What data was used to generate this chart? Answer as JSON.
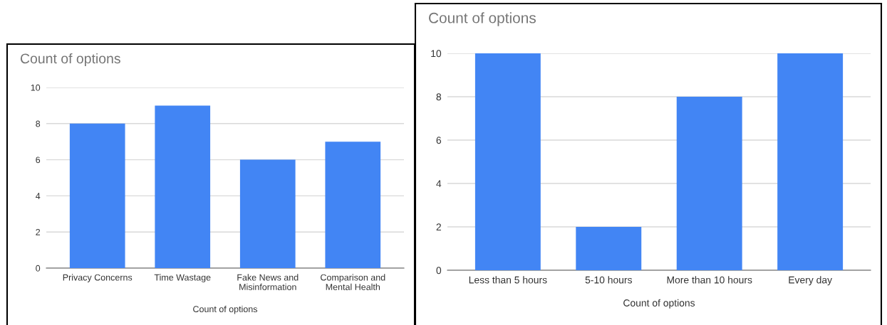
{
  "chart_data": [
    {
      "type": "bar",
      "title": "Count of options",
      "xlabel": "Count of options",
      "categories": [
        "Privacy Concerns",
        "Time Wastage",
        "Fake News and\nMisinformation",
        "Comparison and\nMental Health"
      ],
      "values": [
        8,
        9,
        6,
        7
      ],
      "color": "#4285f4",
      "ylim": [
        0,
        10
      ],
      "yticks": [
        0,
        2,
        4,
        6,
        8,
        10
      ],
      "grid": "y"
    },
    {
      "type": "bar",
      "title": "Count of options",
      "xlabel": "Count of options",
      "categories": [
        "Less than 5 hours",
        "5-10 hours",
        "More than 10 hours",
        "Every day"
      ],
      "values": [
        10,
        2,
        8,
        10
      ],
      "color": "#4285f4",
      "ylim": [
        0,
        10
      ],
      "yticks": [
        0,
        2,
        4,
        6,
        8,
        10
      ],
      "grid": "y"
    }
  ]
}
